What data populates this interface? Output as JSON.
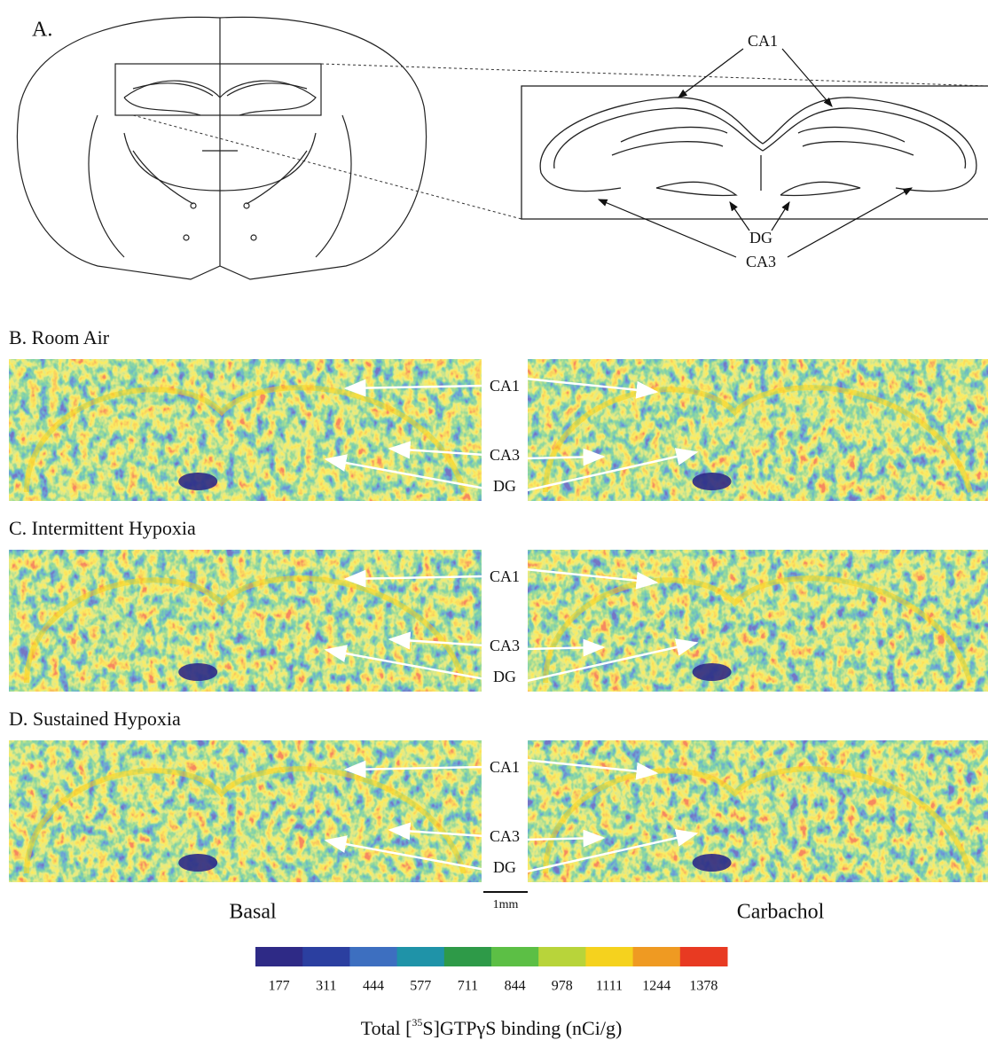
{
  "panel_a": {
    "label": "A.",
    "ca1": "CA1",
    "dg": "DG",
    "ca3": "CA3"
  },
  "rows": [
    {
      "title": "B. Room Air",
      "labels": [
        "CA1",
        "CA3",
        "DG"
      ]
    },
    {
      "title": "C. Intermittent Hypoxia",
      "labels": [
        "CA1",
        "CA3",
        "DG"
      ]
    },
    {
      "title": "D. Sustained Hypoxia",
      "labels": [
        "CA1",
        "CA3",
        "DG"
      ]
    }
  ],
  "columns": [
    "Basal",
    "Carbachol"
  ],
  "scale_bar": "1mm",
  "colorbar": {
    "colors": [
      "#2e2a86",
      "#2b3fa0",
      "#3d6fc0",
      "#1f93a8",
      "#2e9a48",
      "#5cbf45",
      "#b8d43a",
      "#f5d21e",
      "#ef9a22",
      "#e83a22"
    ],
    "ticks": [
      177,
      311,
      444,
      577,
      711,
      844,
      978,
      1111,
      1244,
      1378
    ]
  },
  "axis_label": {
    "before": "Total [",
    "sup": "35",
    "after": "S]GTPγS binding (nCi/g)"
  }
}
